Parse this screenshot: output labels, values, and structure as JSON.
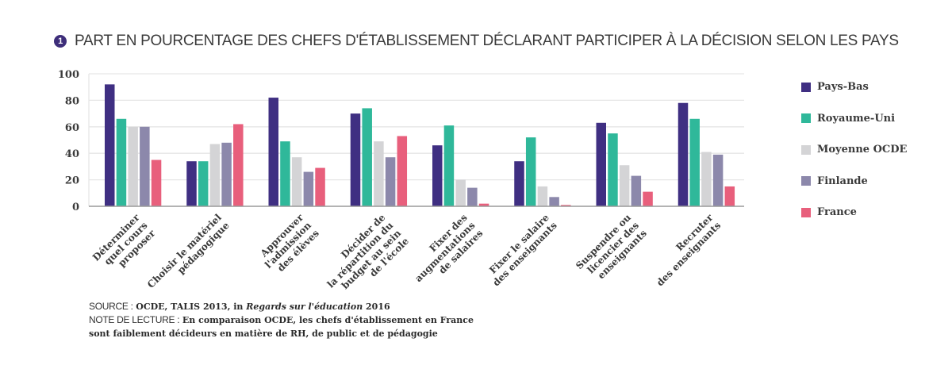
{
  "title": {
    "number": "1",
    "text": "PART EN POURCENTAGE DES CHEFS D'ÉTABLISSEMENT DÉCLARANT PARTICIPER À LA DÉCISION SELON LES PAYS"
  },
  "chart_data": {
    "type": "bar",
    "title": "PART EN POURCENTAGE DES CHEFS D'ÉTABLISSEMENT DÉCLARANT PARTICIPER À LA DÉCISION SELON LES PAYS",
    "xlabel": "",
    "ylabel": "",
    "ylim": [
      0,
      100
    ],
    "yticks": [
      0,
      20,
      40,
      60,
      80,
      100
    ],
    "grid": true,
    "legend_position": "right",
    "categories": [
      [
        "Déterminer",
        "quel cours",
        "proposer"
      ],
      [
        "Choisir le matériel",
        "pédagogique"
      ],
      [
        "Approuver",
        "l'admission",
        "des élèves"
      ],
      [
        "Décider de",
        "la répartition du",
        "budget au sein",
        "de l'école"
      ],
      [
        "Fixer des",
        "augmentations",
        "de salaires"
      ],
      [
        "Fixer le salaire",
        "des enseignants"
      ],
      [
        "Suspendre ou",
        "licencier des",
        "enseignants"
      ],
      [
        "Recruter",
        "des enseignants"
      ]
    ],
    "series": [
      {
        "name": "Pays-Bas",
        "color": "#3f2f82",
        "values": [
          92,
          34,
          82,
          70,
          46,
          34,
          63,
          78
        ]
      },
      {
        "name": "Royaume-Uni",
        "color": "#2fb89a",
        "values": [
          66,
          34,
          49,
          74,
          61,
          52,
          55,
          66
        ]
      },
      {
        "name": "Moyenne OCDE",
        "color": "#d4d4d6",
        "values": [
          60,
          47,
          37,
          49,
          20,
          15,
          31,
          41
        ]
      },
      {
        "name": "Finlande",
        "color": "#8c88ab",
        "values": [
          60,
          48,
          26,
          37,
          14,
          7,
          23,
          39
        ]
      },
      {
        "name": "France",
        "color": "#e85f7c",
        "values": [
          35,
          62,
          29,
          53,
          2,
          1,
          11,
          15
        ]
      }
    ]
  },
  "notes": {
    "source_label": "SOURCE :",
    "source_text_a": "OCDE, TALIS 2013, in ",
    "source_text_italic": "Regards sur l'éducation",
    "source_text_b": " 2016",
    "note_label": "NOTE DE LECTURE :",
    "note_text_1": "En comparaison OCDE, les chefs d'établissement en France",
    "note_text_2": "sont faiblement décideurs en matière de RH, de public et de pédagogie"
  }
}
